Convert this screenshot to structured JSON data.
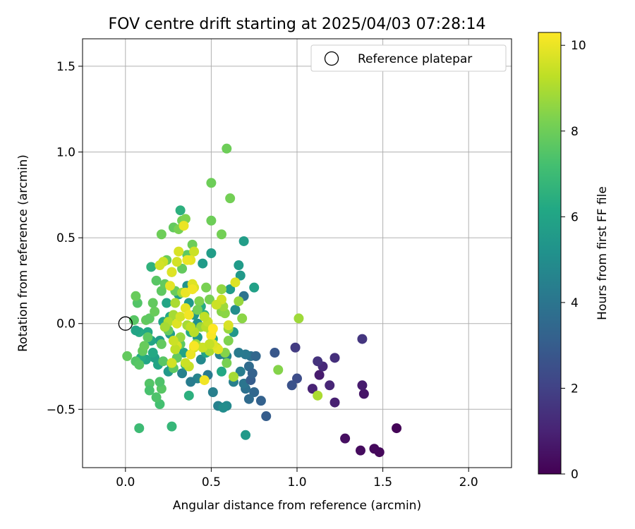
{
  "chart_data": {
    "type": "scatter",
    "title": "FOV centre drift starting at 2025/04/03 07:28:14",
    "xlabel": "Angular distance from reference (arcmin)",
    "ylabel": "Rotation from reference (arcmin)",
    "xlim": [
      -0.25,
      2.25
    ],
    "ylim": [
      -0.84,
      1.66
    ],
    "xticks": [
      0.0,
      0.5,
      1.0,
      1.5,
      2.0
    ],
    "xtick_labels": [
      "0.0",
      "0.5",
      "1.0",
      "1.5",
      "2.0"
    ],
    "yticks": [
      -0.5,
      0.0,
      0.5,
      1.0,
      1.5
    ],
    "ytick_labels": [
      "−0.5",
      "0.0",
      "0.5",
      "1.0",
      "1.5"
    ],
    "grid": true,
    "colormap": "viridis",
    "legend": {
      "position": "top-right",
      "entries": [
        {
          "label": "Reference platepar",
          "marker": "open-circle",
          "x": 0.0,
          "y": 0.0
        }
      ]
    },
    "colorbar": {
      "label": "Hours from first FF file",
      "range": [
        0,
        10.3
      ],
      "ticks": [
        0,
        2,
        4,
        6,
        8,
        10
      ],
      "tick_labels": [
        "0",
        "2",
        "4",
        "6",
        "8",
        "10"
      ]
    },
    "points": [
      [
        1.58,
        -0.61,
        0.1
      ],
      [
        1.48,
        -0.75,
        0.2
      ],
      [
        1.45,
        -0.73,
        0.25
      ],
      [
        1.37,
        -0.74,
        0.3
      ],
      [
        1.28,
        -0.67,
        0.4
      ],
      [
        1.39,
        -0.41,
        0.6
      ],
      [
        1.38,
        -0.36,
        0.8
      ],
      [
        1.22,
        -0.46,
        0.9
      ],
      [
        1.13,
        -0.3,
        0.8
      ],
      [
        1.09,
        -0.38,
        1.0
      ],
      [
        1.19,
        -0.36,
        1.1
      ],
      [
        1.15,
        -0.25,
        1.2
      ],
      [
        1.22,
        -0.2,
        1.4
      ],
      [
        1.12,
        -0.22,
        1.5
      ],
      [
        1.38,
        -0.09,
        1.6
      ],
      [
        0.99,
        -0.14,
        1.8
      ],
      [
        1.0,
        -0.32,
        2.4
      ],
      [
        0.97,
        -0.36,
        2.6
      ],
      [
        0.87,
        -0.17,
        2.8
      ],
      [
        0.82,
        -0.54,
        3.0
      ],
      [
        0.79,
        -0.45,
        3.2
      ],
      [
        0.75,
        -0.4,
        3.4
      ],
      [
        0.72,
        -0.44,
        3.6
      ],
      [
        0.7,
        -0.38,
        3.8
      ],
      [
        0.69,
        -0.35,
        4.0
      ],
      [
        0.72,
        -0.25,
        3.6
      ],
      [
        0.73,
        -0.19,
        3.8
      ],
      [
        0.76,
        -0.19,
        3.4
      ],
      [
        0.73,
        -0.33,
        3.0
      ],
      [
        0.74,
        -0.29,
        3.2
      ],
      [
        0.7,
        -0.18,
        4.1
      ],
      [
        0.67,
        -0.28,
        4.3
      ],
      [
        0.63,
        -0.34,
        4.4
      ],
      [
        0.66,
        -0.17,
        4.2
      ],
      [
        0.59,
        -0.19,
        4.6
      ],
      [
        0.57,
        -0.49,
        4.0
      ],
      [
        0.54,
        -0.48,
        4.5
      ],
      [
        0.59,
        -0.48,
        4.8
      ],
      [
        0.51,
        -0.4,
        4.4
      ],
      [
        0.55,
        -0.18,
        4.5
      ],
      [
        0.48,
        -0.3,
        4.2
      ],
      [
        0.44,
        -0.21,
        4.8
      ],
      [
        0.42,
        -0.32,
        4.6
      ],
      [
        0.38,
        -0.34,
        4.3
      ],
      [
        0.33,
        -0.29,
        4.5
      ],
      [
        0.69,
        0.16,
        3.9
      ],
      [
        0.7,
        -0.65,
        5.5
      ],
      [
        0.64,
        0.08,
        5.0
      ],
      [
        0.75,
        0.21,
        5.8
      ],
      [
        0.69,
        0.48,
        5.7
      ],
      [
        0.67,
        0.28,
        5.5
      ],
      [
        0.66,
        0.34,
        5.6
      ],
      [
        0.61,
        0.2,
        5.6
      ],
      [
        0.63,
        -0.05,
        5.4
      ],
      [
        0.5,
        0.41,
        5.7
      ],
      [
        0.45,
        0.35,
        5.6
      ],
      [
        0.42,
        -0.08,
        5.5
      ],
      [
        0.4,
        0.05,
        5.4
      ],
      [
        0.42,
        0.0,
        5.2
      ],
      [
        0.37,
        0.12,
        5.5
      ],
      [
        0.36,
        0.22,
        5.3
      ],
      [
        0.31,
        0.17,
        5.8
      ],
      [
        0.34,
        -0.17,
        5.9
      ],
      [
        0.31,
        -0.1,
        5.6
      ],
      [
        0.26,
        -0.06,
        5.7
      ],
      [
        0.25,
        -0.28,
        5.5
      ],
      [
        0.27,
        -0.24,
        5.8
      ],
      [
        0.2,
        -0.1,
        5.6
      ],
      [
        0.17,
        -0.2,
        5.8
      ],
      [
        0.19,
        -0.24,
        6.0
      ],
      [
        0.16,
        -0.17,
        6.2
      ],
      [
        0.15,
        -0.1,
        6.0
      ],
      [
        0.13,
        -0.05,
        6.2
      ],
      [
        0.12,
        -0.21,
        6.1
      ],
      [
        0.09,
        -0.2,
        6.3
      ],
      [
        0.08,
        -0.05,
        6.3
      ],
      [
        0.06,
        -0.04,
        6.0
      ],
      [
        0.22,
        0.01,
        6.0
      ],
      [
        0.26,
        0.04,
        6.2
      ],
      [
        0.24,
        0.12,
        6.0
      ],
      [
        0.32,
        0.66,
        6.5
      ],
      [
        0.15,
        0.33,
        6.6
      ],
      [
        0.56,
        -0.28,
        6.2
      ],
      [
        0.57,
        -0.49,
        5.0
      ],
      [
        0.47,
        -0.17,
        6.0
      ],
      [
        0.51,
        -0.09,
        6.2
      ],
      [
        0.46,
        0.05,
        6.6
      ],
      [
        0.44,
        0.1,
        6.3
      ],
      [
        0.37,
        -0.42,
        6.5
      ],
      [
        0.35,
        -0.24,
        6.6
      ],
      [
        0.38,
        -0.05,
        6.3
      ],
      [
        0.27,
        -0.6,
        6.8
      ],
      [
        0.08,
        -0.61,
        7.0
      ],
      [
        0.2,
        -0.47,
        7.2
      ],
      [
        0.18,
        -0.43,
        7.4
      ],
      [
        0.14,
        -0.35,
        7.5
      ],
      [
        0.14,
        -0.39,
        7.3
      ],
      [
        0.21,
        -0.38,
        7.6
      ],
      [
        0.2,
        -0.34,
        7.4
      ],
      [
        0.28,
        -0.26,
        7.7
      ],
      [
        0.1,
        -0.16,
        7.8
      ],
      [
        0.06,
        -0.22,
        7.5
      ],
      [
        0.01,
        -0.19,
        7.8
      ],
      [
        0.08,
        -0.24,
        7.6
      ],
      [
        0.11,
        -0.13,
        7.9
      ],
      [
        0.13,
        -0.08,
        7.7
      ],
      [
        0.12,
        0.02,
        7.8
      ],
      [
        0.05,
        0.02,
        7.6
      ],
      [
        0.07,
        0.12,
        7.5
      ],
      [
        0.06,
        0.16,
        7.9
      ],
      [
        0.14,
        0.03,
        7.7
      ],
      [
        0.17,
        0.07,
        7.9
      ],
      [
        0.16,
        0.12,
        7.8
      ],
      [
        0.18,
        0.25,
        7.6
      ],
      [
        0.21,
        0.19,
        7.7
      ],
      [
        0.23,
        0.23,
        7.8
      ],
      [
        0.24,
        0.37,
        7.9
      ],
      [
        0.27,
        0.3,
        7.7
      ],
      [
        0.25,
        -0.04,
        7.9
      ],
      [
        0.21,
        -0.12,
        7.8
      ],
      [
        0.22,
        -0.22,
        7.6
      ],
      [
        0.3,
        -0.2,
        7.8
      ],
      [
        0.32,
        -0.12,
        7.7
      ],
      [
        0.29,
        0.19,
        7.9
      ],
      [
        0.33,
        0.32,
        7.8
      ],
      [
        0.36,
        0.4,
        7.7
      ],
      [
        0.39,
        0.46,
        8.0
      ],
      [
        0.28,
        0.56,
        7.8
      ],
      [
        0.21,
        0.52,
        8.0
      ],
      [
        0.31,
        0.55,
        8.2
      ],
      [
        0.33,
        0.6,
        8.1
      ],
      [
        0.35,
        0.61,
        8.3
      ],
      [
        0.5,
        0.6,
        8.0
      ],
      [
        0.56,
        0.52,
        8.1
      ],
      [
        0.5,
        0.82,
        8.0
      ],
      [
        0.59,
        1.02,
        8.0
      ],
      [
        0.61,
        0.73,
        8.1
      ],
      [
        0.47,
        0.21,
        8.2
      ],
      [
        0.43,
        0.13,
        8.3
      ],
      [
        0.42,
        0.08,
        8.1
      ],
      [
        0.49,
        0.14,
        8.2
      ],
      [
        0.56,
        0.07,
        8.4
      ],
      [
        0.58,
        0.06,
        8.5
      ],
      [
        0.6,
        -0.1,
        8.3
      ],
      [
        0.58,
        -0.17,
        8.4
      ],
      [
        0.59,
        -0.23,
        8.2
      ],
      [
        0.68,
        0.03,
        8.5
      ],
      [
        0.66,
        0.13,
        8.7
      ],
      [
        0.56,
        0.2,
        8.6
      ],
      [
        0.57,
        0.1,
        8.8
      ],
      [
        0.5,
        -0.05,
        8.6
      ],
      [
        0.44,
        -0.02,
        8.7
      ],
      [
        0.41,
        -0.12,
        8.8
      ],
      [
        0.36,
        -0.01,
        8.9
      ],
      [
        0.32,
        -0.08,
        8.7
      ],
      [
        0.33,
        0.18,
        8.8
      ],
      [
        0.29,
        0.12,
        9.0
      ],
      [
        0.28,
        0.05,
        8.9
      ],
      [
        0.25,
        0.01,
        9.1
      ],
      [
        0.23,
        -0.02,
        8.9
      ],
      [
        0.89,
        -0.27,
        8.4
      ],
      [
        1.01,
        0.03,
        8.8
      ],
      [
        1.12,
        -0.42,
        9.0
      ],
      [
        0.63,
        -0.31,
        8.9
      ],
      [
        0.6,
        -0.03,
        8.7
      ],
      [
        0.53,
        -0.14,
        9.1
      ],
      [
        0.49,
        -0.16,
        9.0
      ],
      [
        0.47,
        -0.02,
        9.2
      ],
      [
        0.48,
        0.01,
        9.4
      ],
      [
        0.46,
        0.04,
        9.3
      ],
      [
        0.45,
        -0.14,
        9.5
      ],
      [
        0.4,
        -0.05,
        9.2
      ],
      [
        0.38,
        -0.02,
        9.3
      ],
      [
        0.4,
        -0.14,
        9.6
      ],
      [
        0.37,
        -0.25,
        9.4
      ],
      [
        0.35,
        -0.23,
        9.5
      ],
      [
        0.3,
        -0.13,
        9.7
      ],
      [
        0.29,
        -0.15,
        9.3
      ],
      [
        0.28,
        -0.1,
        9.5
      ],
      [
        0.27,
        -0.23,
        9.6
      ],
      [
        0.3,
        0.0,
        9.8
      ],
      [
        0.32,
        0.04,
        9.6
      ],
      [
        0.35,
        0.09,
        9.9
      ],
      [
        0.4,
        0.21,
        9.7
      ],
      [
        0.39,
        0.23,
        9.8
      ],
      [
        0.4,
        0.42,
        9.5
      ],
      [
        0.38,
        0.37,
        9.9
      ],
      [
        0.36,
        0.37,
        10.0
      ],
      [
        0.3,
        0.36,
        9.6
      ],
      [
        0.27,
        0.3,
        9.8
      ],
      [
        0.31,
        0.42,
        9.7
      ],
      [
        0.22,
        0.36,
        9.5
      ],
      [
        0.2,
        0.34,
        9.6
      ],
      [
        0.26,
        0.22,
        9.9
      ],
      [
        0.35,
        0.18,
        10.0
      ],
      [
        0.39,
        0.2,
        10.1
      ],
      [
        0.34,
        0.57,
        10.0
      ],
      [
        0.37,
        0.05,
        10.1
      ],
      [
        0.38,
        -0.18,
        10.0
      ],
      [
        0.4,
        -0.13,
        10.2
      ],
      [
        0.46,
        -0.33,
        10.1
      ],
      [
        0.5,
        -0.07,
        10.2
      ],
      [
        0.51,
        -0.03,
        10.3
      ],
      [
        0.54,
        -0.15,
        9.9
      ],
      [
        0.64,
        0.24,
        9.8
      ],
      [
        0.6,
        -0.01,
        9.7
      ],
      [
        0.56,
        0.14,
        9.6
      ],
      [
        0.53,
        0.11,
        9.5
      ],
      [
        0.51,
        -0.12,
        9.8
      ],
      [
        0.49,
        -0.12,
        9.4
      ]
    ]
  }
}
